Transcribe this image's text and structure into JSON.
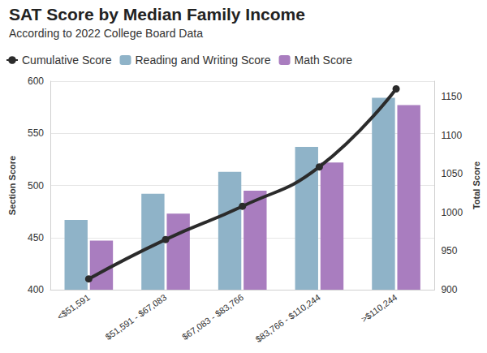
{
  "chart_data": {
    "type": "bar",
    "title": "SAT Score by Median Family Income",
    "subtitle": "According to 2022 College Board Data",
    "y_label": "Section Score",
    "y2_label": "Total Score",
    "categories": [
      "<$51,591",
      "$51,591 - $67,083",
      "$67,083 - $83,766",
      "$83,766 - $110,244",
      ">$110,244"
    ],
    "series": [
      {
        "name": "Cumulative Score",
        "type": "line",
        "axis": "y2",
        "color": "#2b2b2b",
        "marker": "circle",
        "values": [
          914,
          965,
          1008,
          1059,
          1160
        ]
      },
      {
        "name": "Reading and Writing Score",
        "type": "bar",
        "color": "#8fb3c8",
        "values": [
          467,
          492,
          513,
          537,
          584
        ]
      },
      {
        "name": "Math Score",
        "type": "bar",
        "color": "#a97dbf",
        "values": [
          447,
          473,
          495,
          522,
          577
        ]
      }
    ],
    "ylim": [
      400,
      600
    ],
    "yticks": [
      400,
      450,
      500,
      550,
      600
    ],
    "y2lim": [
      900,
      1170
    ],
    "y2ticks": [
      900,
      950,
      1000,
      1050,
      1100,
      1150
    ],
    "grid": true,
    "legend": "top-left"
  }
}
